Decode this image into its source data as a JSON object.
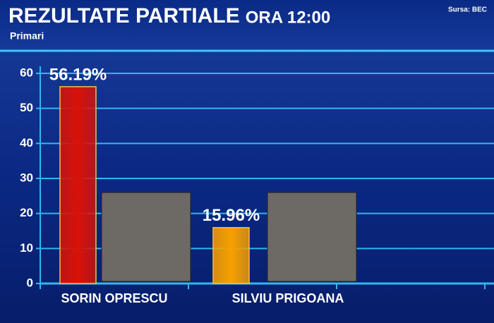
{
  "chart_data": {
    "type": "bar",
    "title": "REZULTATE PARTIALE",
    "time": "ORA 12:00",
    "subtitle": "Primari",
    "source": "Sursa: BEC",
    "categories": [
      "SORIN OPRESCU",
      "SILVIU PRIGOANA"
    ],
    "values": [
      56.19,
      15.96
    ],
    "value_labels": [
      "56.19%",
      "15.96%"
    ],
    "colors": [
      "#d81208",
      "#f7a000"
    ],
    "ylim": [
      0,
      60
    ],
    "yticks": [
      0,
      10,
      20,
      30,
      40,
      50,
      60
    ],
    "grid": true
  }
}
